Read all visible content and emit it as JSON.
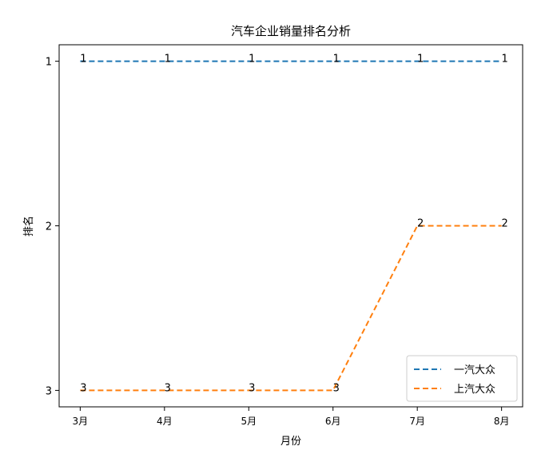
{
  "chart_data": {
    "type": "line",
    "title": "汽车企业销量排名分析",
    "xlabel": "月份",
    "ylabel": "排名",
    "categories": [
      "3月",
      "4月",
      "5月",
      "6月",
      "7月",
      "8月"
    ],
    "y_ticks": [
      1,
      2,
      3
    ],
    "ylim": [
      3.1,
      0.9
    ],
    "y_inverted": true,
    "grid": false,
    "legend_position": "lower-right",
    "series": [
      {
        "name": "一汽大众",
        "values": [
          1,
          1,
          1,
          1,
          1,
          1
        ],
        "color": "#1f77b4",
        "line_style": "dashed"
      },
      {
        "name": "上汽大众",
        "values": [
          3,
          3,
          3,
          3,
          2,
          2
        ],
        "color": "#ff7f0e",
        "line_style": "dashed"
      }
    ]
  }
}
